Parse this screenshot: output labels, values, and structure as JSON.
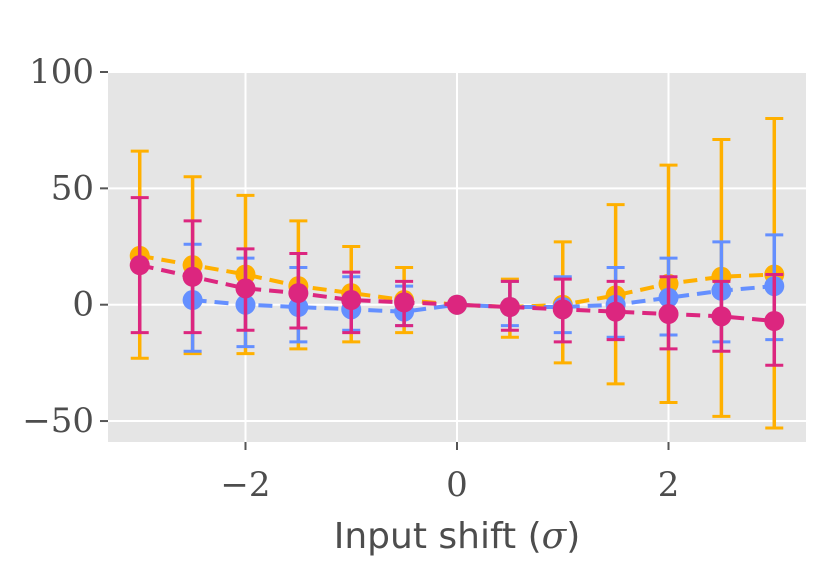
{
  "chart_data": {
    "type": "line",
    "title": "",
    "xlabel": "Input shift (",
    "xlabel_symbol": "σ",
    "xlabel_close": ")",
    "ylabel": "",
    "xlim": [
      -3.3,
      3.3
    ],
    "ylim": [
      -59,
      100
    ],
    "xticks": [
      -2,
      0,
      2
    ],
    "xtick_labels": [
      "−2",
      "0",
      "2"
    ],
    "yticks": [
      -50,
      0,
      50,
      100
    ],
    "ytick_labels": [
      "−50",
      "0",
      "50",
      "100"
    ],
    "grid": true,
    "legend": "none",
    "background": "#e5e5e5",
    "series": [
      {
        "color": "#ffb000",
        "x": [
          -3,
          -2.5,
          -2,
          -1.5,
          -1,
          -0.5,
          0,
          0.5,
          1,
          1.5,
          2,
          2.5,
          3
        ],
        "y": [
          21,
          17,
          13,
          8,
          5,
          2,
          0,
          -1,
          0,
          4,
          9,
          12,
          13
        ],
        "err_low": [
          -23,
          -21,
          -21,
          -19,
          -16,
          -12,
          0,
          -14,
          -25,
          -34,
          -42,
          -48,
          -53
        ],
        "err_high": [
          66,
          55,
          47,
          36,
          25,
          16,
          0,
          11,
          27,
          43,
          60,
          71,
          80
        ]
      },
      {
        "color": "#648fff",
        "x": [
          -2.5,
          -2,
          -1.5,
          -1,
          -0.5,
          0,
          0.5,
          1,
          1.5,
          2,
          2.5,
          3
        ],
        "y": [
          2,
          0,
          -1,
          -2,
          -3,
          0,
          -1,
          -1,
          0,
          3,
          6,
          8
        ],
        "err_low": [
          -20,
          -18,
          -16,
          -11,
          -9,
          0,
          -9,
          -12,
          -14,
          -13,
          -16,
          -15
        ],
        "err_high": [
          26,
          20,
          16,
          12,
          8,
          0,
          10,
          12,
          16,
          20,
          27,
          30
        ]
      },
      {
        "color": "#dc267f",
        "x": [
          -3,
          -2.5,
          -2,
          -1.5,
          -1,
          -0.5,
          0,
          0.5,
          1,
          1.5,
          2,
          2.5,
          3
        ],
        "y": [
          17,
          12,
          7,
          5,
          2,
          1,
          0,
          -1,
          -2,
          -3,
          -4,
          -5,
          -7
        ],
        "err_low": [
          -12,
          -12,
          -11,
          -10,
          -12,
          -9,
          0,
          -11,
          -16,
          -15,
          -19,
          -20,
          -26
        ],
        "err_high": [
          46,
          36,
          24,
          22,
          14,
          10,
          0,
          10,
          11,
          10,
          12,
          10,
          13
        ]
      }
    ]
  }
}
